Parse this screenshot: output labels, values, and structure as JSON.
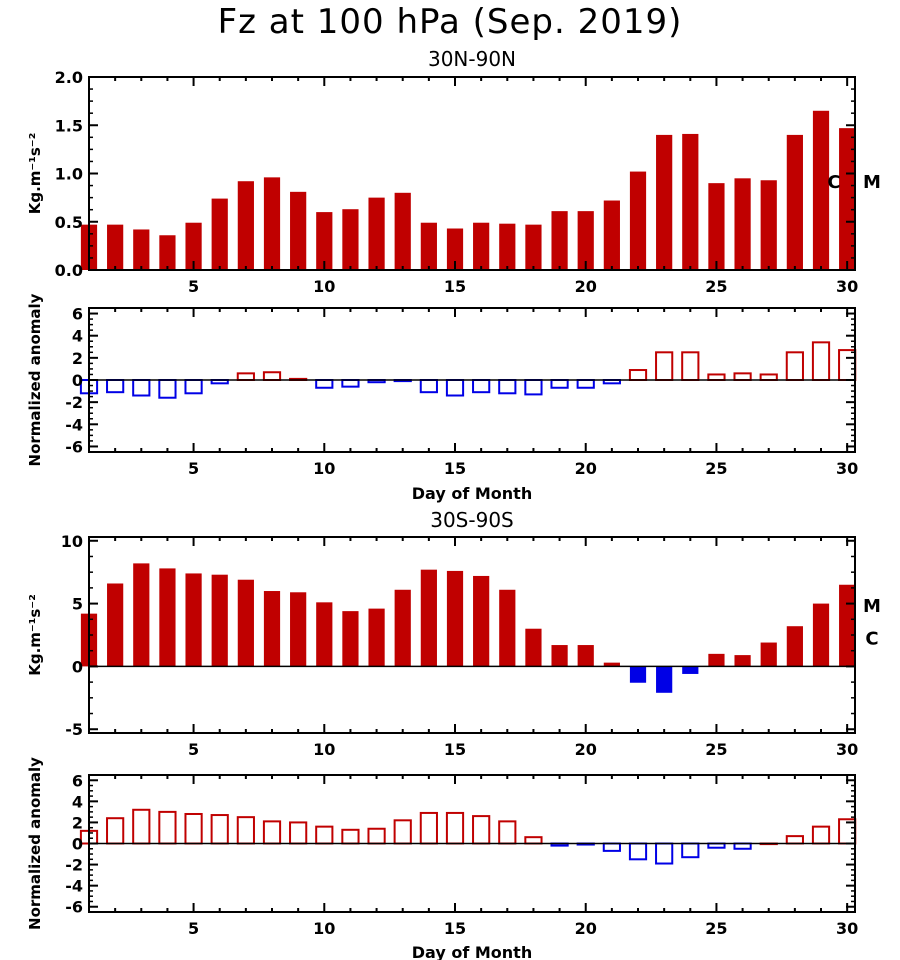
{
  "title": "Fz at 100 hPa (Sep. 2019)",
  "colors": {
    "positive_fill": "#c00000",
    "negative_fill": "#0000e6",
    "positive_outline": "#c00000",
    "negative_outline": "#0000e6",
    "axis": "#000000"
  },
  "chart_data": [
    {
      "type": "bar",
      "title": "30N-90N",
      "xlabel": "",
      "ylabel": "Kg.m⁻¹s⁻²",
      "x": [
        1,
        2,
        3,
        4,
        5,
        6,
        7,
        8,
        9,
        10,
        11,
        12,
        13,
        14,
        15,
        16,
        17,
        18,
        19,
        20,
        21,
        22,
        23,
        24,
        25,
        26,
        27,
        28,
        29,
        30
      ],
      "values": [
        0.47,
        0.47,
        0.42,
        0.36,
        0.49,
        0.74,
        0.92,
        0.96,
        0.81,
        0.6,
        0.63,
        0.75,
        0.8,
        0.49,
        0.43,
        0.49,
        0.48,
        0.47,
        0.61,
        0.61,
        0.72,
        1.02,
        1.4,
        1.41,
        0.9,
        0.95,
        0.93,
        1.4,
        1.65,
        1.47
      ],
      "xlim": [
        1,
        30.3
      ],
      "ylim": [
        0,
        2.0
      ],
      "xticks": [
        5,
        10,
        15,
        20,
        25,
        30
      ],
      "yticks": [
        0.0,
        0.5,
        1.0,
        1.5,
        2.0
      ],
      "ytick_labels": [
        "0.0",
        "0.5",
        "1.0",
        "1.5",
        "2.0"
      ],
      "bar_style": "filled",
      "grid": false,
      "markers": [
        {
          "label": "C",
          "value": 0.92
        },
        {
          "label": "M",
          "value": 0.92
        }
      ]
    },
    {
      "type": "bar",
      "title": "",
      "xlabel": "Day of Month",
      "ylabel": "Normalized anomaly",
      "x": [
        1,
        2,
        3,
        4,
        5,
        6,
        7,
        8,
        9,
        10,
        11,
        12,
        13,
        14,
        15,
        16,
        17,
        18,
        19,
        20,
        21,
        22,
        23,
        24,
        25,
        26,
        27,
        28,
        29,
        30
      ],
      "values": [
        -1.2,
        -1.1,
        -1.4,
        -1.6,
        -1.2,
        -0.3,
        0.6,
        0.7,
        0.1,
        -0.7,
        -0.6,
        -0.2,
        -0.1,
        -1.1,
        -1.4,
        -1.1,
        -1.2,
        -1.3,
        -0.7,
        -0.7,
        -0.3,
        0.9,
        2.5,
        2.5,
        0.5,
        0.6,
        0.5,
        2.5,
        3.4,
        2.7
      ],
      "xlim": [
        1,
        30.3
      ],
      "ylim": [
        -6.5,
        6.5
      ],
      "xticks": [
        5,
        10,
        15,
        20,
        25,
        30
      ],
      "yticks": [
        -6,
        -4,
        -2,
        0,
        2,
        4,
        6
      ],
      "ytick_labels": [
        "-6",
        "-4",
        "-2",
        "0",
        "2",
        "4",
        "6"
      ],
      "bar_style": "outline",
      "grid": false
    },
    {
      "type": "bar",
      "title": "30S-90S",
      "xlabel": "",
      "ylabel": "Kg.m⁻¹s⁻²",
      "x": [
        1,
        2,
        3,
        4,
        5,
        6,
        7,
        8,
        9,
        10,
        11,
        12,
        13,
        14,
        15,
        16,
        17,
        18,
        19,
        20,
        21,
        22,
        23,
        24,
        25,
        26,
        27,
        28,
        29,
        30
      ],
      "values": [
        4.2,
        6.6,
        8.2,
        7.8,
        7.4,
        7.3,
        6.9,
        6.0,
        5.9,
        5.1,
        4.4,
        4.6,
        6.1,
        7.7,
        7.6,
        7.2,
        6.1,
        3.0,
        1.7,
        1.7,
        0.3,
        -1.3,
        -2.1,
        -0.6,
        1.0,
        0.9,
        1.9,
        3.2,
        5.0,
        6.5
      ],
      "xlim": [
        1,
        30.3
      ],
      "ylim": [
        -5.3,
        10.3
      ],
      "xticks": [
        5,
        10,
        15,
        20,
        25,
        30
      ],
      "yticks": [
        -5,
        0,
        5,
        10
      ],
      "ytick_labels": [
        "-5",
        "0",
        "5",
        "10"
      ],
      "bar_style": "filled",
      "grid": false,
      "markers": [
        {
          "label": "M",
          "value": 4.9
        },
        {
          "label": "C",
          "value": 2.3
        }
      ]
    },
    {
      "type": "bar",
      "title": "",
      "xlabel": "Day of Month",
      "ylabel": "Normalized anomaly",
      "x": [
        1,
        2,
        3,
        4,
        5,
        6,
        7,
        8,
        9,
        10,
        11,
        12,
        13,
        14,
        15,
        16,
        17,
        18,
        19,
        20,
        21,
        22,
        23,
        24,
        25,
        26,
        27,
        28,
        29,
        30
      ],
      "values": [
        1.2,
        2.4,
        3.2,
        3.0,
        2.8,
        2.7,
        2.5,
        2.1,
        2.0,
        1.6,
        1.3,
        1.4,
        2.2,
        2.9,
        2.9,
        2.6,
        2.1,
        0.6,
        -0.2,
        -0.1,
        -0.7,
        -1.5,
        -1.9,
        -1.3,
        -0.4,
        -0.5,
        0.0,
        0.7,
        1.6,
        2.3
      ],
      "xlim": [
        1,
        30.3
      ],
      "ylim": [
        -6.5,
        6.5
      ],
      "xticks": [
        5,
        10,
        15,
        20,
        25,
        30
      ],
      "yticks": [
        -6,
        -4,
        -2,
        0,
        2,
        4,
        6
      ],
      "ytick_labels": [
        "-6",
        "-4",
        "-2",
        "0",
        "2",
        "4",
        "6"
      ],
      "bar_style": "outline",
      "grid": false
    }
  ]
}
